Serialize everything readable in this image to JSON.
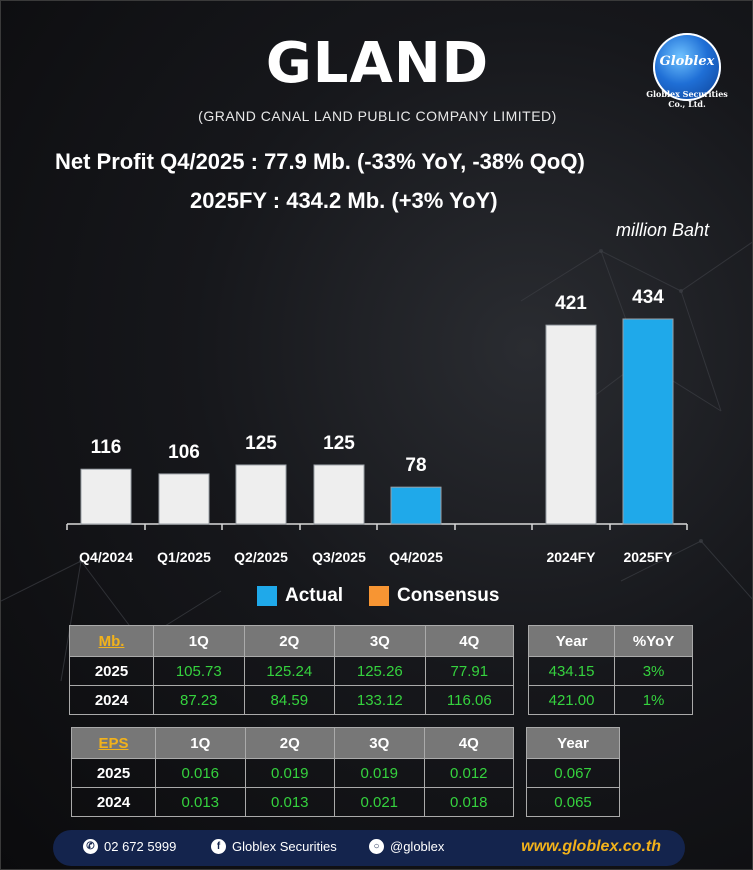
{
  "header": {
    "title": "GLAND",
    "subtitle": "(GRAND CANAL LAND PUBLIC COMPANY LIMITED)",
    "logo_text": "Globlex",
    "logo_caption": "Globlex Securities Co., Ltd."
  },
  "headline": {
    "line1": "Net Profit  Q4/2025 : 77.9 Mb. (-33% YoY, -38% QoQ)",
    "line2": "2025FY : 434.2 Mb. (+3% YoY)",
    "unit": "million Baht"
  },
  "colors": {
    "actual": "#1fa9ea",
    "consensus": "#f79533",
    "previous": "#eeeeee",
    "accent": "#f2b21b",
    "table_value": "#35d23e"
  },
  "chart_data": {
    "type": "bar",
    "categories": [
      "Q4/2024",
      "Q1/2025",
      "Q2/2025",
      "Q3/2025",
      "Q4/2025",
      "",
      "2024FY",
      "2025FY"
    ],
    "values": [
      116,
      106,
      125,
      125,
      78,
      null,
      421,
      434
    ],
    "value_labels": [
      "116",
      "106",
      "125",
      "125",
      "78",
      "",
      "421",
      "434"
    ],
    "bar_colors": [
      "#eeeeee",
      "#eeeeee",
      "#eeeeee",
      "#eeeeee",
      "#1fa9ea",
      "",
      "#eeeeee",
      "#1fa9ea"
    ],
    "ylim": [
      0,
      434
    ],
    "grid": false,
    "legend": [
      {
        "label": "Actual",
        "color": "#1fa9ea"
      },
      {
        "label": "Consensus",
        "color": "#f79533"
      }
    ]
  },
  "net_profit_table": {
    "corner": "Mb.",
    "columns": [
      "1Q",
      "2Q",
      "3Q",
      "4Q"
    ],
    "rows": [
      {
        "label": "2025",
        "values": [
          "105.73",
          "125.24",
          "125.26",
          "77.91"
        ]
      },
      {
        "label": "2024",
        "values": [
          "87.23",
          "84.59",
          "133.12",
          "116.06"
        ]
      }
    ]
  },
  "net_profit_summary": {
    "columns": [
      "Year",
      "%YoY"
    ],
    "rows": [
      [
        "434.15",
        "3%"
      ],
      [
        "421.00",
        "1%"
      ]
    ]
  },
  "eps_table": {
    "corner": "EPS",
    "columns": [
      "1Q",
      "2Q",
      "3Q",
      "4Q"
    ],
    "rows": [
      {
        "label": "2025",
        "values": [
          "0.016",
          "0.019",
          "0.019",
          "0.012"
        ]
      },
      {
        "label": "2024",
        "values": [
          "0.013",
          "0.013",
          "0.021",
          "0.018"
        ]
      }
    ]
  },
  "eps_summary": {
    "columns": [
      "Year"
    ],
    "rows": [
      [
        "0.067"
      ],
      [
        "0.065"
      ]
    ]
  },
  "footer": {
    "phone": "02 672 5999",
    "facebook": "Globlex Securities",
    "line": "@globlex",
    "website": "www.globlex.co.th"
  }
}
